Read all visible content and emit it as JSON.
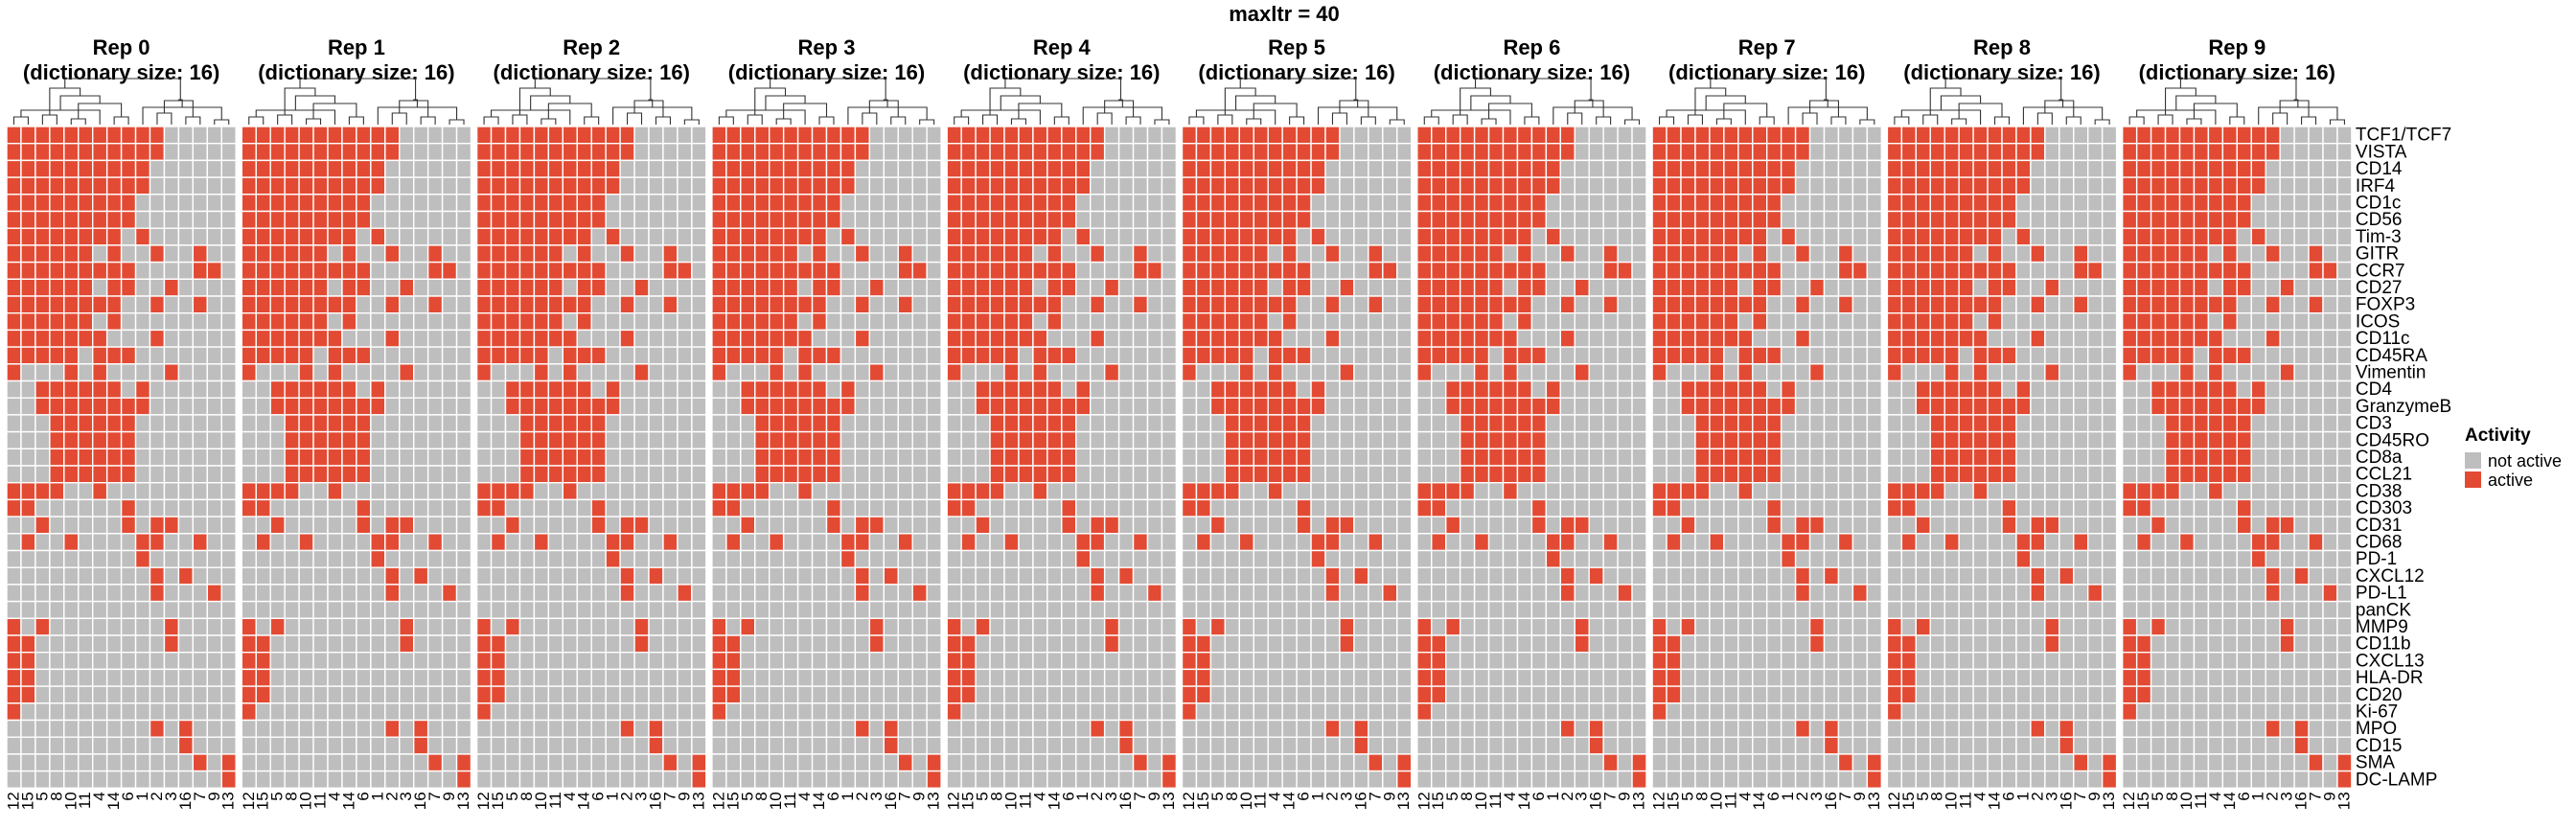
{
  "chart_data": {
    "type": "heatmap",
    "title": "maxltr = 40",
    "rows": [
      "TCF1/TCF7",
      "VISTA",
      "CD14",
      "IRF4",
      "CD1c",
      "CD56",
      "Tim-3",
      "GITR",
      "CCR7",
      "CD27",
      "FOXP3",
      "ICOS",
      "CD11c",
      "CD45RA",
      "Vimentin",
      "CD4",
      "GranzymeB",
      "CD3",
      "CD45RO",
      "CD8a",
      "CCL21",
      "CD38",
      "CD303",
      "CD31",
      "CD68",
      "PD-1",
      "CXCL12",
      "PD-L1",
      "panCK",
      "MMP9",
      "CD11b",
      "CXCL13",
      "HLA-DR",
      "CD20",
      "Ki-67",
      "MPO",
      "CD15",
      "SMA",
      "DC-LAMP"
    ],
    "columns": [
      "12",
      "15",
      "5",
      "8",
      "10",
      "11",
      "4",
      "14",
      "6",
      "1",
      "2",
      "3",
      "16",
      "7",
      "9",
      "13"
    ],
    "matrix": [
      [
        1,
        1,
        1,
        1,
        1,
        1,
        1,
        1,
        1,
        1,
        1,
        0,
        0,
        0,
        0,
        0
      ],
      [
        1,
        1,
        1,
        1,
        1,
        1,
        1,
        1,
        1,
        1,
        1,
        0,
        0,
        0,
        0,
        0
      ],
      [
        1,
        1,
        1,
        1,
        1,
        1,
        1,
        1,
        1,
        1,
        0,
        0,
        0,
        0,
        0,
        0
      ],
      [
        1,
        1,
        1,
        1,
        1,
        1,
        1,
        1,
        1,
        1,
        0,
        0,
        0,
        0,
        0,
        0
      ],
      [
        1,
        1,
        1,
        1,
        1,
        1,
        1,
        1,
        1,
        0,
        0,
        0,
        0,
        0,
        0,
        0
      ],
      [
        1,
        1,
        1,
        1,
        1,
        1,
        1,
        1,
        1,
        0,
        0,
        0,
        0,
        0,
        0,
        0
      ],
      [
        1,
        1,
        1,
        1,
        1,
        1,
        1,
        1,
        0,
        1,
        0,
        0,
        0,
        0,
        0,
        0
      ],
      [
        1,
        1,
        1,
        1,
        1,
        1,
        0,
        1,
        0,
        0,
        1,
        0,
        0,
        1,
        0,
        0
      ],
      [
        1,
        1,
        1,
        1,
        1,
        1,
        1,
        1,
        1,
        0,
        0,
        0,
        0,
        1,
        1,
        0
      ],
      [
        1,
        1,
        1,
        1,
        1,
        1,
        0,
        1,
        1,
        0,
        0,
        1,
        0,
        0,
        0,
        0
      ],
      [
        1,
        1,
        1,
        1,
        1,
        1,
        1,
        1,
        0,
        0,
        1,
        0,
        0,
        1,
        0,
        0
      ],
      [
        1,
        1,
        1,
        1,
        1,
        1,
        0,
        1,
        0,
        0,
        0,
        0,
        0,
        0,
        0,
        0
      ],
      [
        1,
        1,
        1,
        1,
        1,
        1,
        1,
        0,
        0,
        0,
        1,
        0,
        0,
        0,
        0,
        0
      ],
      [
        1,
        1,
        1,
        1,
        1,
        0,
        1,
        1,
        1,
        0,
        0,
        0,
        0,
        0,
        0,
        0
      ],
      [
        1,
        0,
        0,
        0,
        1,
        0,
        1,
        0,
        0,
        0,
        0,
        1,
        0,
        0,
        0,
        0
      ],
      [
        0,
        0,
        1,
        1,
        1,
        1,
        1,
        1,
        0,
        1,
        0,
        0,
        0,
        0,
        0,
        0
      ],
      [
        0,
        0,
        1,
        1,
        1,
        1,
        1,
        1,
        1,
        1,
        0,
        0,
        0,
        0,
        0,
        0
      ],
      [
        0,
        0,
        0,
        1,
        1,
        1,
        1,
        1,
        1,
        0,
        0,
        0,
        0,
        0,
        0,
        0
      ],
      [
        0,
        0,
        0,
        1,
        1,
        1,
        1,
        1,
        1,
        0,
        0,
        0,
        0,
        0,
        0,
        0
      ],
      [
        0,
        0,
        0,
        1,
        1,
        1,
        1,
        1,
        1,
        0,
        0,
        0,
        0,
        0,
        0,
        0
      ],
      [
        0,
        0,
        0,
        1,
        1,
        1,
        1,
        1,
        1,
        0,
        0,
        0,
        0,
        0,
        0,
        0
      ],
      [
        1,
        1,
        1,
        1,
        0,
        0,
        1,
        0,
        0,
        0,
        0,
        0,
        0,
        0,
        0,
        0
      ],
      [
        1,
        1,
        0,
        0,
        0,
        0,
        0,
        0,
        1,
        0,
        0,
        0,
        0,
        0,
        0,
        0
      ],
      [
        0,
        0,
        1,
        0,
        0,
        0,
        0,
        0,
        1,
        0,
        1,
        1,
        0,
        0,
        0,
        0
      ],
      [
        0,
        1,
        0,
        0,
        1,
        0,
        0,
        0,
        0,
        1,
        1,
        0,
        0,
        1,
        0,
        0
      ],
      [
        0,
        0,
        0,
        0,
        0,
        0,
        0,
        0,
        0,
        1,
        0,
        0,
        0,
        0,
        0,
        0
      ],
      [
        0,
        0,
        0,
        0,
        0,
        0,
        0,
        0,
        0,
        0,
        1,
        0,
        1,
        0,
        0,
        0
      ],
      [
        0,
        0,
        0,
        0,
        0,
        0,
        0,
        0,
        0,
        0,
        1,
        0,
        0,
        0,
        1,
        0
      ],
      [
        0,
        0,
        0,
        0,
        0,
        0,
        0,
        0,
        0,
        0,
        0,
        0,
        0,
        0,
        0,
        0
      ],
      [
        1,
        0,
        1,
        0,
        0,
        0,
        0,
        0,
        0,
        0,
        0,
        1,
        0,
        0,
        0,
        0
      ],
      [
        1,
        1,
        0,
        0,
        0,
        0,
        0,
        0,
        0,
        0,
        0,
        1,
        0,
        0,
        0,
        0
      ],
      [
        1,
        1,
        0,
        0,
        0,
        0,
        0,
        0,
        0,
        0,
        0,
        0,
        0,
        0,
        0,
        0
      ],
      [
        1,
        1,
        0,
        0,
        0,
        0,
        0,
        0,
        0,
        0,
        0,
        0,
        0,
        0,
        0,
        0
      ],
      [
        1,
        1,
        0,
        0,
        0,
        0,
        0,
        0,
        0,
        0,
        0,
        0,
        0,
        0,
        0,
        0
      ],
      [
        1,
        0,
        0,
        0,
        0,
        0,
        0,
        0,
        0,
        0,
        0,
        0,
        0,
        0,
        0,
        0
      ],
      [
        0,
        0,
        0,
        0,
        0,
        0,
        0,
        0,
        0,
        0,
        1,
        0,
        1,
        0,
        0,
        0
      ],
      [
        0,
        0,
        0,
        0,
        0,
        0,
        0,
        0,
        0,
        0,
        0,
        0,
        1,
        0,
        0,
        0
      ],
      [
        0,
        0,
        0,
        0,
        0,
        0,
        0,
        0,
        0,
        0,
        0,
        0,
        0,
        1,
        0,
        1
      ],
      [
        0,
        0,
        0,
        0,
        0,
        0,
        0,
        0,
        0,
        0,
        0,
        0,
        0,
        0,
        0,
        1
      ]
    ],
    "panels": [
      {
        "title": "Rep 0",
        "subtitle": "(dictionary size: 16)"
      },
      {
        "title": "Rep 1",
        "subtitle": "(dictionary size: 16)"
      },
      {
        "title": "Rep 2",
        "subtitle": "(dictionary size: 16)"
      },
      {
        "title": "Rep 3",
        "subtitle": "(dictionary size: 16)"
      },
      {
        "title": "Rep 4",
        "subtitle": "(dictionary size: 16)"
      },
      {
        "title": "Rep 5",
        "subtitle": "(dictionary size: 16)"
      },
      {
        "title": "Rep 6",
        "subtitle": "(dictionary size: 16)"
      },
      {
        "title": "Rep 7",
        "subtitle": "(dictionary size: 16)"
      },
      {
        "title": "Rep 8",
        "subtitle": "(dictionary size: 16)"
      },
      {
        "title": "Rep 9",
        "subtitle": "(dictionary size: 16)"
      }
    ],
    "legend": {
      "title": "Activity",
      "position": "right",
      "items": [
        {
          "label": "not active",
          "color": "#bebebe"
        },
        {
          "label": "active",
          "color": "#e34a33"
        }
      ]
    },
    "dendrogram": "column clustering tree shown above each panel",
    "grid": true
  }
}
